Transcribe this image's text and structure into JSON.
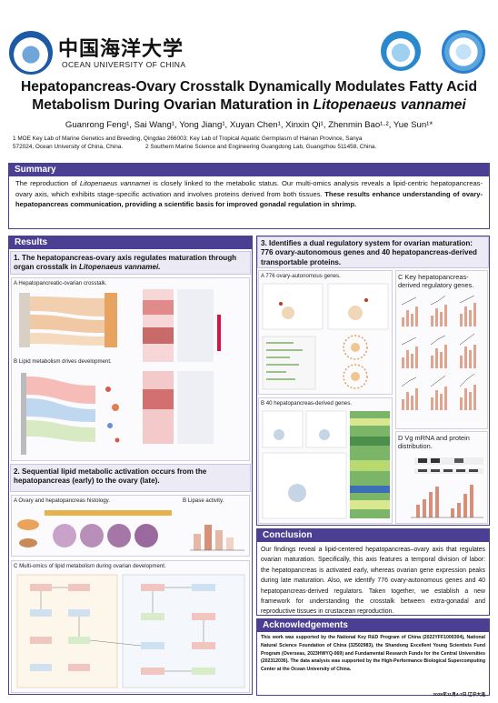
{
  "header": {
    "university_cn": "中国海洋大学",
    "university_en": "OCEAN UNIVERSITY OF CHINA",
    "title_line1": "Hepatopancreas-Ovary Crosstalk Dynamically Modulates Fatty Acid",
    "title_line2_plain": "Metabolism During Ovarian Maturation in ",
    "title_line2_italic": "Litopenaeus vannamei",
    "authors": "Guanrong Feng¹, Sai Wang¹, Yong Jiang¹, Xuyan Chen¹, Xinxin Qi¹, Zhenmin Bao¹·², Yue Sun¹*",
    "affiliation1": "1 MOE Key Lab of Marine Genetics and Breeding, Qingdao 266003; Key Lab of Tropical Aquatic Germplasm of Hainan Province, Sanya",
    "affiliation2": "572024, Ocean University of China, China.              2 Southern Marine Science and Engineering Guangdong Lab, Guangzhou 511458, China."
  },
  "summary": {
    "heading": "Summary",
    "text_a": "The reproduction of ",
    "text_species": "Litopenaeus vannamei",
    "text_b": " is closely linked to the metabolic status. Our multi-omics analysis reveals a lipid-centric hepatopancreas-ovary axis, which exhibits stage-specific activation and involves proteins derived from both tissues. ",
    "text_bold": "These results enhance understanding of ovary-hepatopancreas communication, providing a scientific basis for improved gonadal regulation in shrimp."
  },
  "results": {
    "heading": "Results",
    "r1_heading_a": "1. The hepatopancreas-ovary axis regulates maturation through organ crosstalk in ",
    "r1_heading_species": "Litopenaeus vannamei.",
    "r1_panel_a": "A Hepatopancreatic-ovarian crosstalk.",
    "r1_panel_b": "B Lipid metabolism drives development.",
    "r2_heading": "2. Sequential lipid metabolic activation occurs from the hepatopancreas (early) to the ovary (late).",
    "r2_panel_a": "A Ovary and hepatopancreas histology.",
    "r2_panel_b": "B Lipase activity.",
    "r2_panel_c": "C Multi-omics of lipid metabolism during ovarian development.",
    "r3_heading": "3. Identifies a dual regulatory system for ovarian maturation: 776 ovary-autonomous genes and 40 hepatopancreas-derived transportable proteins.",
    "r3_panel_a": "A 776 ovary-autonomous genes.",
    "r3_panel_b": "B 40 hepatopancreas-derived genes.",
    "r3_panel_c": "C Key hepatopancreas-derived regulatory genes.",
    "r3_panel_d": "D Vg mRNA and protein distribution."
  },
  "conclusion": {
    "heading": "Conclusion",
    "text": "Our findings reveal a lipid-centered hepatopancreas–ovary axis that regulates ovarian maturation. Specifically, this axis features a temporal division of labor: the hepatopancreas is activated early, whereas ovarian gene expression peaks during late maturation. Also, we identify 776 ovary-autonomous genes and 40 hepatopancreas-derived regulators. Taken together, we establish a new framework for understanding the crosstalk between extra-gonadal and reproductive tissues in crustacean reproduction."
  },
  "acknowledgements": {
    "heading": "Acknowledgements",
    "text": "This work was supported by the National Key R&D Program of China (2022YFF1000304), National Natural Science Foundation of China (32502983), the Shandong Excellent Young Scientists Fund Program (Overseas, 2023HWYQ-069) and Fundamental Research Funds for the Central Universities (202312036). The data analysis was supported by the High-Performance Biological Supercomputing Center at the Ocean University of China.",
    "date": "2025年11月4-7日 辽宁大连"
  },
  "colors": {
    "section_bar": "#4b3f93",
    "panel_lilac": "#ecebf5",
    "accent_orange": "#e9a35a",
    "accent_red": "#c0392b"
  },
  "icons": [
    "ouc-logo-icon",
    "society-logo-icon",
    "conference-logo-icon"
  ]
}
